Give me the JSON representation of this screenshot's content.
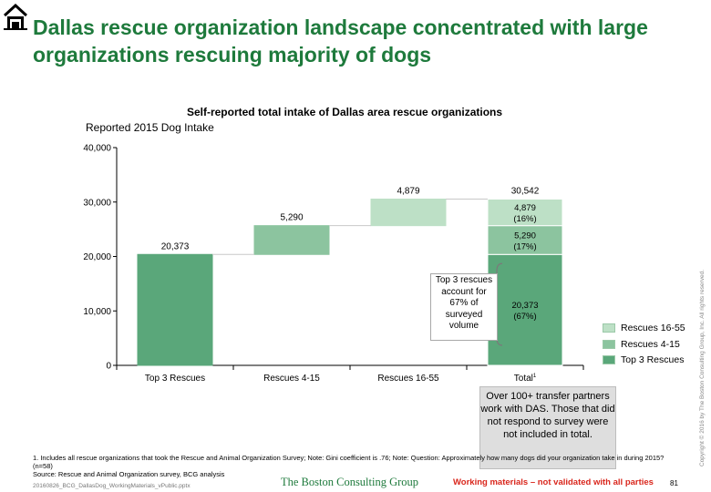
{
  "page": {
    "title": "Dallas rescue organization landscape concentrated with large organizations rescuing majority of dogs"
  },
  "chart_data": {
    "type": "bar",
    "subtype": "waterfall",
    "title": "Self-reported total intake of Dallas area rescue organizations",
    "ylabel": "Reported 2015 Dog Intake",
    "xlabel": "",
    "ylim": [
      0,
      40000
    ],
    "yticks": [
      "0",
      "10,000",
      "20,000",
      "30,000",
      "40,000"
    ],
    "grid": false,
    "categories": [
      "Top 3 Rescues",
      "Rescues 4-15",
      "Rescues 16-55",
      "Total"
    ],
    "total_superscript": "1",
    "series": [
      {
        "name": "Top 3 Rescues",
        "values": [
          20373,
          0,
          0,
          20373
        ],
        "color": "#5aa77a"
      },
      {
        "name": "Rescues 4-15",
        "values": [
          0,
          5290,
          0,
          5290
        ],
        "color": "#8cc49f"
      },
      {
        "name": "Rescues 16-55",
        "values": [
          0,
          0,
          4879,
          4879
        ],
        "color": "#bde0c6"
      }
    ],
    "bar_labels": [
      "20,373",
      "5,290",
      "4,879",
      "30,542"
    ],
    "segment_labels": [
      {
        "value": "20,373",
        "pct": "(67%)"
      },
      {
        "value": "5,290",
        "pct": "(17%)"
      },
      {
        "value": "4,879",
        "pct": "(16%)"
      }
    ],
    "legend": [
      "Rescues 16-55",
      "Rescues 4-15",
      "Top 3 Rescues"
    ],
    "legend_position": "right",
    "callout": "Top 3 rescues account for 67% of surveyed volume"
  },
  "note_box": "Over 100+ transfer partners work with DAS. Those that did not respond to survey were not included in total.",
  "footnote": "1. Includes all rescue organizations that took the Rescue and Animal Organization Survey; Note: Gini coefficient is .76; Note: Question: Approximately how many dogs did your organization take in during 2015? (n=58)",
  "source": "Source: Rescue and Animal Organization survey, BCG analysis",
  "filename": "20160826_BCG_DallasDog_WorkingMaterials_vPublic.pptx",
  "brand": "The Boston Consulting Group",
  "working_note": "Working materials – not validated with all parties",
  "page_number": "81",
  "copyright": "Copyright © 2016 by The Boston Consulting Group, Inc. All rights reserved.",
  "colors": {
    "title": "#1e7a3c",
    "working": "#d9261c"
  },
  "icons": {
    "logo": "house-icon"
  }
}
